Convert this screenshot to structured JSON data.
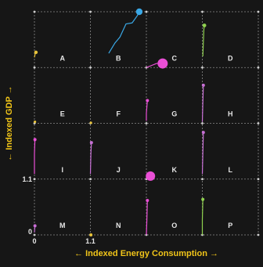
{
  "chart_data": {
    "type": "scatter",
    "layout": "small-multiples-4x4",
    "xlabel": "← Indexed Energy Consumption →",
    "ylabel": "← Indexed GDP →",
    "xlim": [
      0,
      1.1
    ],
    "ylim": [
      0,
      1.1
    ],
    "x_ticks": [
      "0",
      "1.1"
    ],
    "y_ticks": [
      "0",
      "1.1"
    ],
    "grid": "dashed cell borders",
    "colors": {
      "background": "#161616",
      "grid": "#8a8a8a",
      "title": "#f0c419",
      "yellow": "#e8c33a",
      "blue": "#3aa8e6",
      "magenta": "#ea4fd6",
      "green": "#8fd14f",
      "orchid": "#c86fd6"
    },
    "cells": [
      {
        "label": "A",
        "color": "yellow",
        "dot_size": 2.2,
        "path": [
          [
            0.0,
            0.2
          ],
          [
            0.01,
            0.25
          ],
          [
            0.02,
            0.3
          ],
          [
            0.03,
            0.3
          ]
        ]
      },
      {
        "label": "B",
        "color": "blue",
        "dot_size": 4.2,
        "path": [
          [
            0.36,
            0.28
          ],
          [
            0.48,
            0.48
          ],
          [
            0.58,
            0.6
          ],
          [
            0.7,
            0.86
          ],
          [
            0.82,
            0.88
          ],
          [
            0.92,
            1.02
          ],
          [
            0.96,
            1.1
          ]
        ]
      },
      {
        "label": "C",
        "color": "magenta",
        "dot_size": 6.5,
        "path": [
          [
            0.0,
            0.0
          ],
          [
            0.2,
            0.08
          ],
          [
            0.32,
            0.08
          ]
        ]
      },
      {
        "label": "D",
        "color": "green",
        "dot_size": 2.4,
        "path": [
          [
            0.01,
            0.22
          ],
          [
            0.02,
            0.5
          ],
          [
            0.03,
            0.75
          ],
          [
            0.04,
            0.83
          ]
        ]
      },
      {
        "label": "E",
        "color": "yellow",
        "dot_size": 1.6,
        "path": [
          [
            0.0,
            0.03
          ],
          [
            0.01,
            0.03
          ]
        ]
      },
      {
        "label": "F",
        "color": "yellow",
        "dot_size": 1.6,
        "path": [
          [
            0.0,
            0.0
          ],
          [
            0.01,
            0.01
          ]
        ]
      },
      {
        "label": "G",
        "color": "magenta",
        "dot_size": 2.0,
        "path": [
          [
            0.0,
            0.05
          ],
          [
            0.0,
            0.2
          ],
          [
            0.02,
            0.45
          ]
        ]
      },
      {
        "label": "H",
        "color": "orchid",
        "dot_size": 2.0,
        "path": [
          [
            0.0,
            0.03
          ],
          [
            0.01,
            0.4
          ],
          [
            0.02,
            0.75
          ]
        ]
      },
      {
        "label": "I",
        "color": "magenta",
        "dot_size": 2.0,
        "path": [
          [
            0.0,
            0.1
          ],
          [
            0.0,
            0.5
          ],
          [
            0.01,
            0.78
          ]
        ]
      },
      {
        "label": "J",
        "color": "orchid",
        "dot_size": 2.0,
        "path": [
          [
            0.0,
            0.1
          ],
          [
            0.01,
            0.5
          ],
          [
            0.02,
            0.72
          ]
        ]
      },
      {
        "label": "K",
        "color": "magenta",
        "dot_size": 6.0,
        "path": [
          [
            0.0,
            0.0
          ],
          [
            0.04,
            0.02
          ],
          [
            0.08,
            0.06
          ]
        ]
      },
      {
        "label": "L",
        "color": "orchid",
        "dot_size": 2.0,
        "path": [
          [
            0.0,
            0.1
          ],
          [
            0.01,
            0.5
          ],
          [
            0.02,
            0.92
          ]
        ]
      },
      {
        "label": "M",
        "color": "orchid",
        "dot_size": 2.0,
        "path": [
          [
            0.0,
            0.05
          ],
          [
            0.01,
            0.18
          ]
        ]
      },
      {
        "label": "N",
        "color": "yellow",
        "dot_size": 2.0,
        "path": [
          [
            0.0,
            0.0
          ],
          [
            0.01,
            0.0
          ]
        ]
      },
      {
        "label": "O",
        "color": "magenta",
        "dot_size": 2.0,
        "path": [
          [
            0.0,
            0.0
          ],
          [
            0.01,
            0.3
          ],
          [
            0.02,
            0.68
          ]
        ]
      },
      {
        "label": "P",
        "color": "green",
        "dot_size": 2.0,
        "path": [
          [
            0.0,
            0.0
          ],
          [
            0.0,
            0.3
          ],
          [
            0.01,
            0.7
          ]
        ]
      }
    ]
  }
}
